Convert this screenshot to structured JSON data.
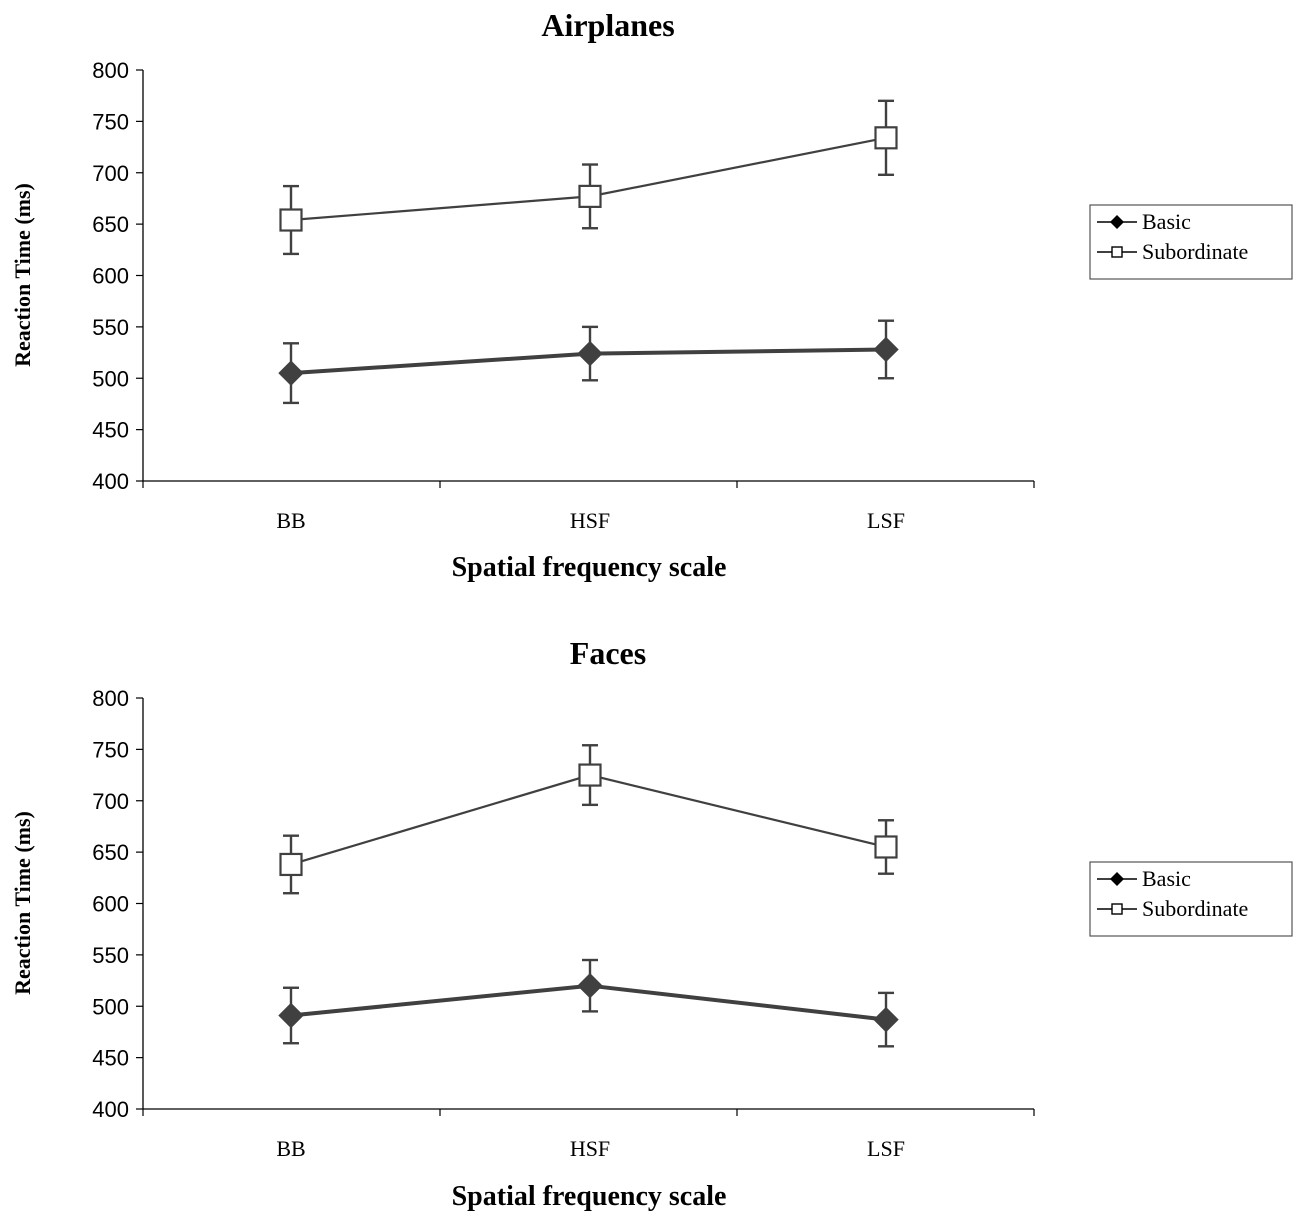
{
  "chart_data": [
    {
      "type": "line",
      "title": "Airplanes",
      "xlabel": "Spatial frequency scale",
      "ylabel": "Reaction Time (ms)",
      "categories": [
        "BB",
        "HSF",
        "LSF"
      ],
      "ylim": [
        400,
        800
      ],
      "yticks": [
        "400",
        "450",
        "500",
        "550",
        "600",
        "650",
        "700",
        "750",
        "800"
      ],
      "grid": false,
      "legend": {
        "position": "right",
        "entries": [
          "Basic",
          "Subordinate"
        ]
      },
      "series": [
        {
          "name": "Basic",
          "marker": "diamond-filled",
          "values": [
            505,
            524,
            528
          ],
          "errors": [
            29,
            26,
            28
          ],
          "color": "#404040"
        },
        {
          "name": "Subordinate",
          "marker": "square-open",
          "values": [
            654,
            677,
            734
          ],
          "errors": [
            33,
            31,
            36
          ],
          "color": "#404040"
        }
      ]
    },
    {
      "type": "line",
      "title": "Faces",
      "xlabel": "Spatial frequency scale",
      "ylabel": "Reaction Time (ms)",
      "categories": [
        "BB",
        "HSF",
        "LSF"
      ],
      "ylim": [
        400,
        800
      ],
      "yticks": [
        "400",
        "450",
        "500",
        "550",
        "600",
        "650",
        "700",
        "750",
        "800"
      ],
      "grid": false,
      "legend": {
        "position": "right",
        "entries": [
          "Basic",
          "Subordinate"
        ]
      },
      "series": [
        {
          "name": "Basic",
          "marker": "diamond-filled",
          "values": [
            491,
            520,
            487
          ],
          "errors": [
            27,
            25,
            26
          ],
          "color": "#404040"
        },
        {
          "name": "Subordinate",
          "marker": "square-open",
          "values": [
            638,
            725,
            655
          ],
          "errors": [
            28,
            29,
            26
          ],
          "color": "#404040"
        }
      ]
    }
  ]
}
